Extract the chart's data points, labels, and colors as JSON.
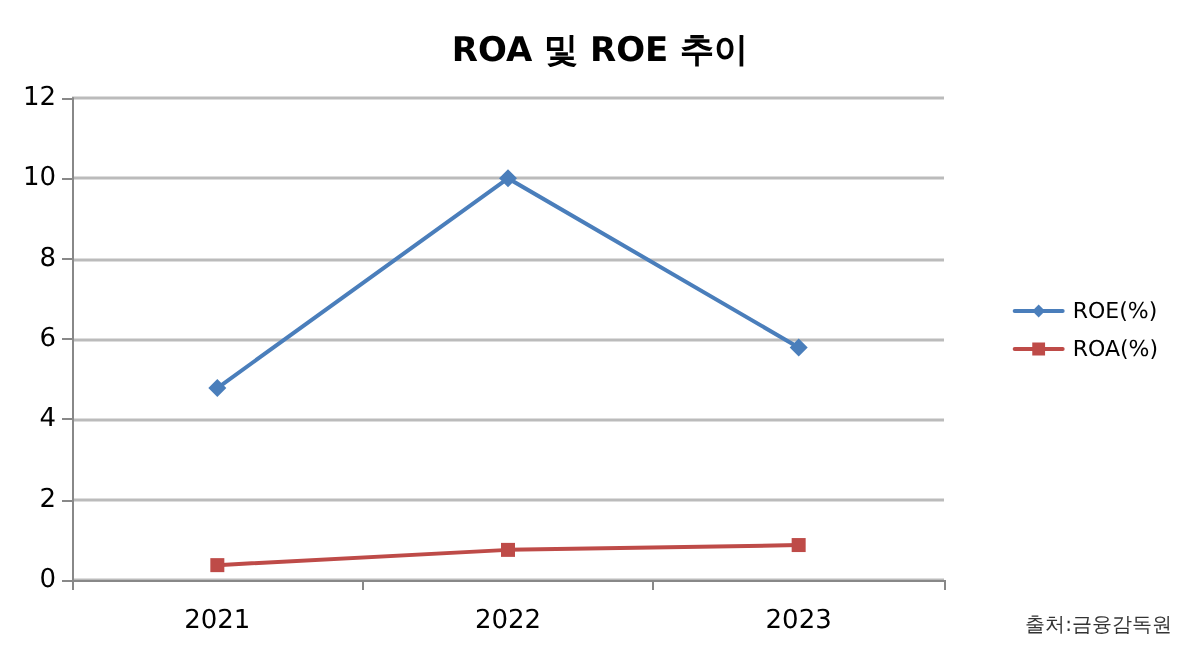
{
  "chart_data": {
    "type": "line",
    "title": "ROA 및 ROE 추이",
    "categories": [
      "2021",
      "2022",
      "2023"
    ],
    "series": [
      {
        "name": "ROE(%)",
        "color": "#4a7ebb",
        "marker": "diamond",
        "values": [
          4.78,
          10.0,
          5.79
        ]
      },
      {
        "name": "ROA(%)",
        "color": "#be4b48",
        "marker": "square",
        "values": [
          0.37,
          0.75,
          0.87
        ]
      }
    ],
    "ylim": [
      0,
      12
    ],
    "yticks": [
      0,
      2,
      4,
      6,
      8,
      10,
      12
    ],
    "grid": "y",
    "legend": "right",
    "annotations": [
      "출처:금융감독원"
    ]
  }
}
